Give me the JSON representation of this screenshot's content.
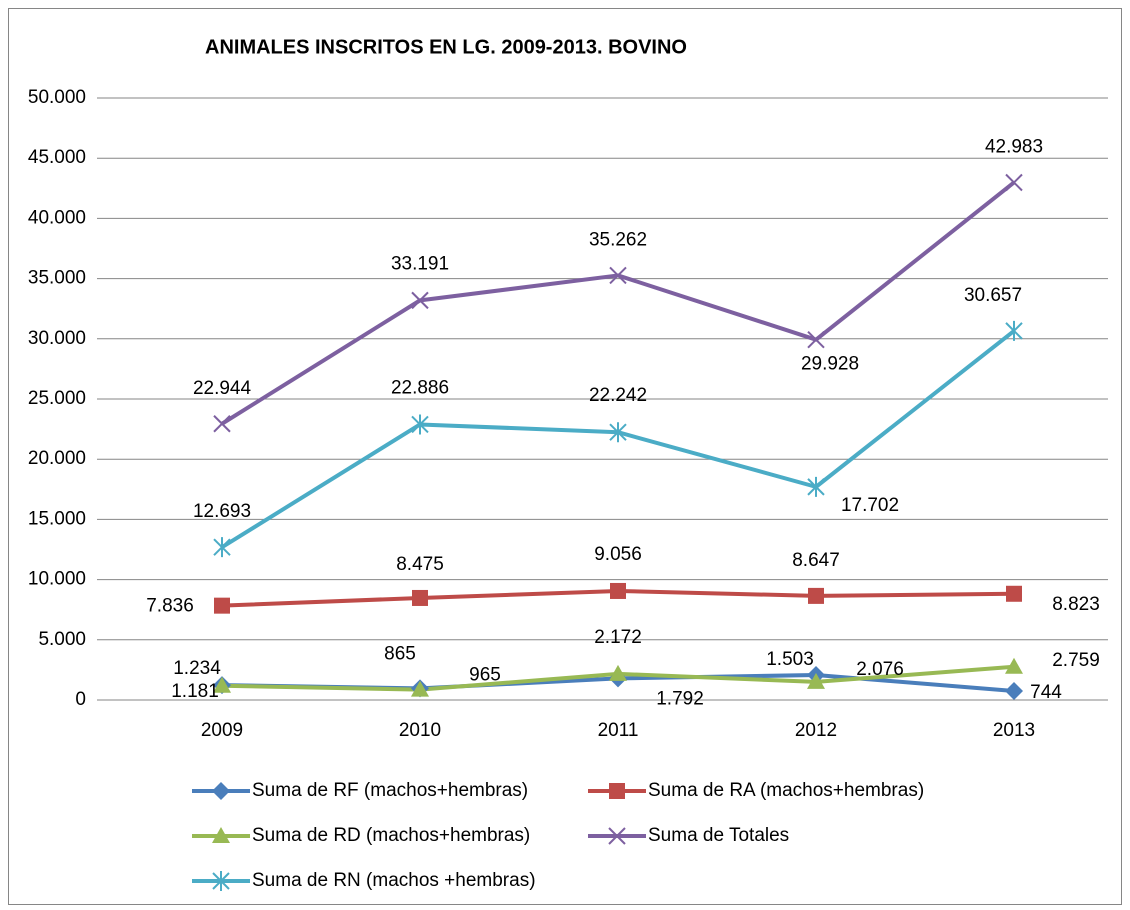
{
  "chart_data": {
    "type": "line",
    "title": "ANIMALES INSCRITOS EN LG. 2009-2013. BOVINO",
    "categories": [
      "2009",
      "2010",
      "2011",
      "2012",
      "2013"
    ],
    "ylim": [
      0,
      50000
    ],
    "yticks": [
      0,
      {
        "value": 5000,
        "label": "5.000"
      },
      {
        "value": 10000,
        "label": "10.000"
      },
      {
        "value": 15000,
        "label": "15.000"
      },
      {
        "value": 20000,
        "label": "20.000"
      },
      {
        "value": 25000,
        "label": "25.000"
      },
      {
        "value": 30000,
        "label": "30.000"
      },
      {
        "value": 35000,
        "label": "35.000"
      },
      {
        "value": 40000,
        "label": "40.000"
      },
      {
        "value": 45000,
        "label": "45.000"
      },
      {
        "value": 50000,
        "label": "50.000"
      }
    ],
    "grid": true,
    "legend": "bottom",
    "series": [
      {
        "name": "Suma de RF (machos+hembras)",
        "color": "#4a7ebb",
        "marker": "diamond",
        "values": [
          1234,
          965,
          1792,
          2076,
          744
        ],
        "value_labels": [
          "1.234",
          "965",
          "1.792",
          "2.076",
          "744"
        ]
      },
      {
        "name": "Suma de RA (machos+hembras)",
        "color": "#be4b48",
        "marker": "square",
        "values": [
          7836,
          8475,
          9056,
          8647,
          8823
        ],
        "value_labels": [
          "7.836",
          "8.475",
          "9.056",
          "8.647",
          "8.823"
        ]
      },
      {
        "name": "Suma de RD (machos+hembras)",
        "color": "#98b954",
        "marker": "triangle",
        "values": [
          1181,
          865,
          2172,
          1503,
          2759
        ],
        "value_labels": [
          "1.181",
          "865",
          "2.172",
          "1.503",
          "2.759"
        ]
      },
      {
        "name": "Suma de Totales",
        "color": "#7d60a0",
        "marker": "x",
        "values": [
          22944,
          33191,
          35262,
          29928,
          42983
        ],
        "value_labels": [
          "22.944",
          "33.191",
          "35.262",
          "29.928",
          "42.983"
        ]
      },
      {
        "name": "Suma de RN (machos +hembras)",
        "color": "#4bacc6",
        "marker": "star",
        "values": [
          12693,
          22886,
          22242,
          17702,
          30657
        ],
        "value_labels": [
          "12.693",
          "22.886",
          "22.242",
          "17.702",
          "30.657"
        ]
      }
    ]
  }
}
